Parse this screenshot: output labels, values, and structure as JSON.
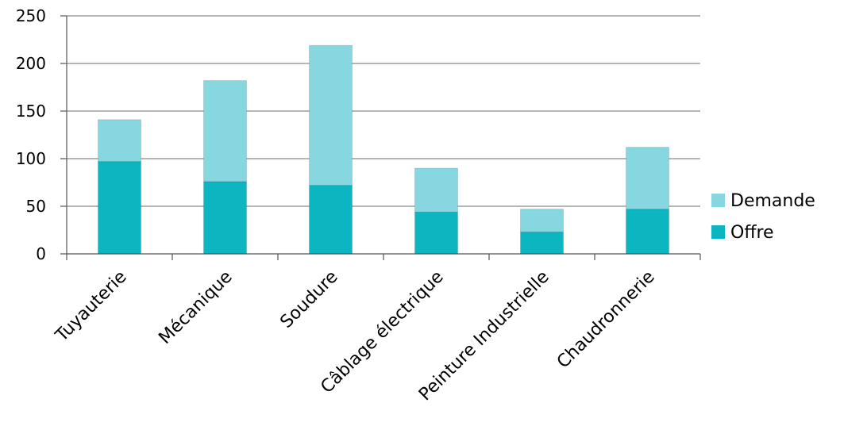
{
  "chart_data": {
    "type": "bar",
    "stacked": true,
    "categories": [
      "Tuyauterie",
      "Mécanique",
      "Soudure",
      "Câblage électrique",
      "Peinture Industrielle",
      "Chaudronnerie"
    ],
    "series": [
      {
        "name": "Offre",
        "values": [
          97,
          76,
          72,
          44,
          23,
          47
        ],
        "color": "#0BB6C0"
      },
      {
        "name": "Demande",
        "values": [
          44,
          106,
          147,
          46,
          24,
          65
        ],
        "color": "#86D7E0"
      }
    ],
    "ylim": [
      0,
      250
    ],
    "yticks": [
      "0",
      "50",
      "100",
      "150",
      "200",
      "250"
    ],
    "grid": true,
    "legend_position": "right"
  }
}
